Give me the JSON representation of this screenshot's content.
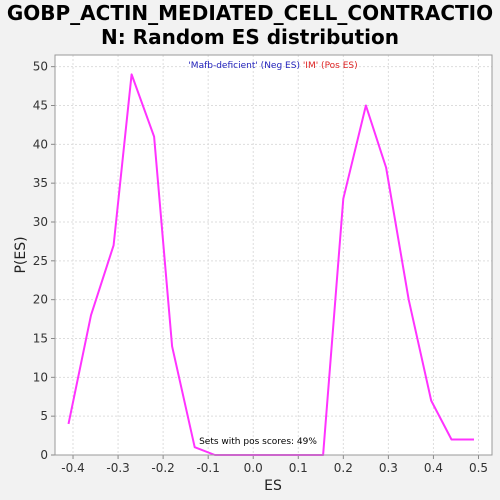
{
  "chart_data": {
    "type": "line",
    "title_line1": "GOBP_ACTIN_MEDIATED_CELL_CONTRACTIO",
    "title_line2": "N: Random ES distribution",
    "xlabel": "ES",
    "ylabel": "P(ES)",
    "xlim": [
      -0.44,
      0.53
    ],
    "ylim": [
      0,
      51.5
    ],
    "x_ticks": [
      -0.4,
      -0.3,
      -0.2,
      -0.1,
      0.0,
      0.1,
      0.2,
      0.3,
      0.4,
      0.5
    ],
    "x_tick_labels": [
      "-0.4",
      "-0.3",
      "-0.2",
      "-0.1",
      "0.0",
      "0.1",
      "0.2",
      "0.3",
      "0.4",
      "0.5"
    ],
    "y_ticks": [
      0,
      5,
      10,
      15,
      20,
      25,
      30,
      35,
      40,
      45,
      50
    ],
    "y_tick_labels": [
      "0",
      "5",
      "10",
      "15",
      "20",
      "25",
      "30",
      "35",
      "40",
      "45",
      "50"
    ],
    "grid": true,
    "legend_neg": "'Mafb-deficient' (Neg ES)",
    "legend_pos": "'IM' (Pos ES)",
    "annotation": "Sets with pos scores: 49%",
    "colors": {
      "line": "#ff33ff",
      "neg_label": "#2222bb",
      "pos_label": "#dd2222",
      "grid": "#dddddd",
      "plot_bg": "#ffffff"
    },
    "series": [
      {
        "x": [
          -0.41,
          -0.36,
          -0.31,
          -0.27,
          -0.22,
          -0.18,
          -0.13,
          -0.085,
          -0.04,
          0.01,
          0.06,
          0.11,
          0.155,
          0.2,
          0.25,
          0.295,
          0.345,
          0.395,
          0.44,
          0.49
        ],
        "y": [
          4,
          18,
          27,
          49,
          41,
          14,
          1,
          0,
          0,
          0,
          0,
          0,
          0,
          33,
          45,
          37,
          20,
          7,
          2,
          2
        ]
      }
    ]
  }
}
